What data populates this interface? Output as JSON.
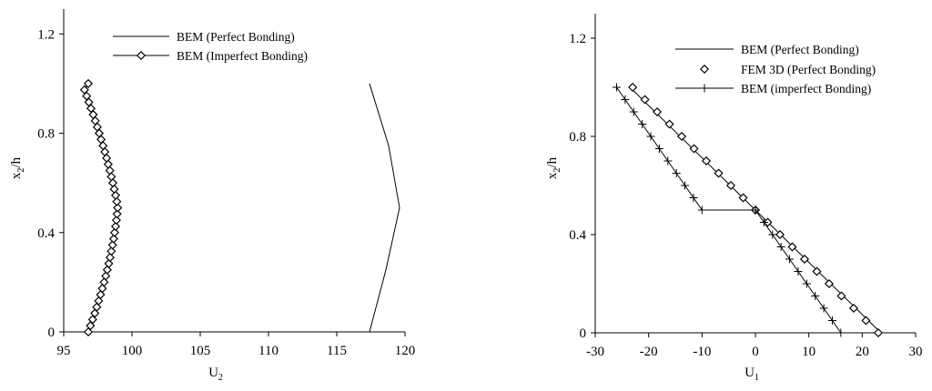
{
  "chart_data": [
    {
      "type": "line",
      "title": "",
      "xlabel_main": "U",
      "xlabel_sub": "2",
      "ylabel_main": "x",
      "ylabel_sub": "2",
      "ylabel_tail": "/h",
      "xlim": [
        95,
        120
      ],
      "ylim": [
        0,
        1.3
      ],
      "xticks": [
        95,
        100,
        105,
        110,
        115,
        120
      ],
      "yticks": [
        0,
        0.4,
        0.8,
        1.2
      ],
      "xtick_labels": [
        "95",
        "100",
        "105",
        "110",
        "115",
        "120"
      ],
      "ytick_labels": [
        "0",
        "0.4",
        "0.8",
        "1.2"
      ],
      "grid": false,
      "legend_placement": "top-center",
      "series": [
        {
          "name": "BEM (Perfect Bonding)",
          "marker": "none",
          "points": [
            [
              117.4,
              0.0
            ],
            [
              118.6,
              0.25
            ],
            [
              119.6,
              0.5
            ],
            [
              118.8,
              0.75
            ],
            [
              117.4,
              1.0
            ]
          ]
        },
        {
          "name": "BEM (Imperfect Bonding)",
          "marker": "diamond",
          "points": [
            [
              96.8,
              0.0
            ],
            [
              96.96,
              0.025
            ],
            [
              97.12,
              0.05
            ],
            [
              97.28,
              0.075
            ],
            [
              97.42,
              0.1
            ],
            [
              97.56,
              0.125
            ],
            [
              97.7,
              0.15
            ],
            [
              97.83,
              0.175
            ],
            [
              97.96,
              0.2
            ],
            [
              98.08,
              0.225
            ],
            [
              98.19,
              0.25
            ],
            [
              98.3,
              0.275
            ],
            [
              98.4,
              0.3
            ],
            [
              98.49,
              0.325
            ],
            [
              98.58,
              0.35
            ],
            [
              98.66,
              0.375
            ],
            [
              98.73,
              0.4
            ],
            [
              98.8,
              0.425
            ],
            [
              98.86,
              0.45
            ],
            [
              98.91,
              0.475
            ],
            [
              98.95,
              0.5
            ],
            [
              98.89,
              0.525
            ],
            [
              98.8,
              0.55
            ],
            [
              98.7,
              0.575
            ],
            [
              98.6,
              0.6
            ],
            [
              98.49,
              0.625
            ],
            [
              98.38,
              0.65
            ],
            [
              98.26,
              0.675
            ],
            [
              98.14,
              0.7
            ],
            [
              98.01,
              0.725
            ],
            [
              97.88,
              0.75
            ],
            [
              97.74,
              0.775
            ],
            [
              97.6,
              0.8
            ],
            [
              97.46,
              0.825
            ],
            [
              97.31,
              0.85
            ],
            [
              97.16,
              0.875
            ],
            [
              97.0,
              0.9
            ],
            [
              96.84,
              0.925
            ],
            [
              96.68,
              0.95
            ],
            [
              96.52,
              0.975
            ],
            [
              96.8,
              1.0
            ]
          ]
        }
      ]
    },
    {
      "type": "line",
      "title": "",
      "xlabel_main": "U",
      "xlabel_sub": "1",
      "ylabel_main": "x",
      "ylabel_sub": "2",
      "ylabel_tail": "/h",
      "xlim": [
        -30,
        30
      ],
      "ylim": [
        0,
        1.3
      ],
      "xticks": [
        -30,
        -20,
        -10,
        0,
        10,
        20,
        30
      ],
      "yticks": [
        0,
        0.4,
        0.8,
        1.2
      ],
      "xtick_labels": [
        "-30",
        "-20",
        "-10",
        "0",
        "10",
        "20",
        "30"
      ],
      "ytick_labels": [
        "0",
        "0.4",
        "0.8",
        "1.2"
      ],
      "grid": false,
      "legend_placement": "top-right",
      "series": [
        {
          "name": "BEM  (Perfect Bonding)",
          "marker": "none",
          "points": [
            [
              -23.5,
              1.0
            ],
            [
              0.0,
              0.5
            ],
            [
              23.5,
              0.0
            ]
          ]
        },
        {
          "name": "FEM 3D  (Perfect Bonding)",
          "marker": "diamond-only",
          "points": [
            [
              -23,
              1.0
            ],
            [
              -20.7,
              0.95
            ],
            [
              -18.4,
              0.9
            ],
            [
              -16.1,
              0.85
            ],
            [
              -13.8,
              0.8
            ],
            [
              -11.5,
              0.75
            ],
            [
              -9.2,
              0.7
            ],
            [
              -6.9,
              0.65
            ],
            [
              -4.6,
              0.6
            ],
            [
              -2.3,
              0.55
            ],
            [
              0.0,
              0.5
            ],
            [
              2.3,
              0.45
            ],
            [
              4.6,
              0.4
            ],
            [
              6.9,
              0.35
            ],
            [
              9.2,
              0.3
            ],
            [
              11.5,
              0.25
            ],
            [
              13.8,
              0.2
            ],
            [
              16.1,
              0.15
            ],
            [
              18.4,
              0.1
            ],
            [
              20.7,
              0.05
            ],
            [
              23,
              0.0
            ]
          ]
        },
        {
          "name": "BEM  (imperfect Bonding)",
          "marker": "plus",
          "points": [
            [
              -26.0,
              1.0
            ],
            [
              -24.4,
              0.95
            ],
            [
              -22.8,
              0.9
            ],
            [
              -21.2,
              0.85
            ],
            [
              -19.6,
              0.8
            ],
            [
              -18.0,
              0.75
            ],
            [
              -16.4,
              0.7
            ],
            [
              -14.8,
              0.65
            ],
            [
              -13.2,
              0.6
            ],
            [
              -11.6,
              0.55
            ],
            [
              -10.0,
              0.5
            ],
            [
              0.0,
              0.5
            ],
            [
              1.6,
              0.45
            ],
            [
              3.2,
              0.4
            ],
            [
              4.8,
              0.35
            ],
            [
              6.4,
              0.3
            ],
            [
              8.0,
              0.25
            ],
            [
              9.6,
              0.2
            ],
            [
              11.2,
              0.15
            ],
            [
              12.8,
              0.1
            ],
            [
              14.4,
              0.05
            ],
            [
              16.0,
              0.0
            ]
          ]
        }
      ]
    }
  ]
}
